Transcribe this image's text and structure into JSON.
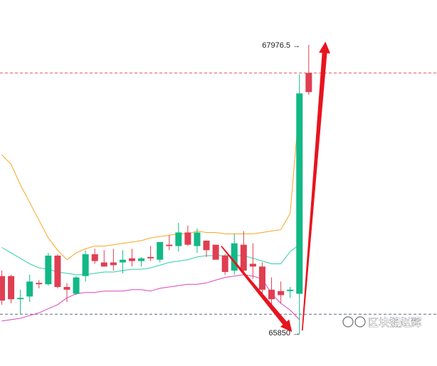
{
  "chart_data": {
    "type": "candlestick",
    "title": "",
    "xlabel": "",
    "ylabel": "",
    "annotations": {
      "high_label": "67976.5",
      "low_label": "65850",
      "watermark": "区块链赵辉"
    },
    "price_lines": [
      67770,
      66000
    ],
    "colors": {
      "up": "#12b886",
      "down": "#e03e52",
      "boll_upper": "#f5a623",
      "boll_mid": "#2ecfa6",
      "boll_lower": "#dd44bb",
      "arrow": "#e8141e",
      "price_line_red": "#e85d5d",
      "price_line_gray": "#5a6a8a"
    },
    "candles": [
      {
        "o": 66280,
        "h": 66320,
        "l": 66070,
        "c": 66100
      },
      {
        "o": 66280,
        "h": 66290,
        "l": 66080,
        "c": 66110
      },
      {
        "o": 66110,
        "h": 66180,
        "l": 66000,
        "c": 66120
      },
      {
        "o": 66130,
        "h": 66290,
        "l": 66090,
        "c": 66240
      },
      {
        "o": 66230,
        "h": 66250,
        "l": 66190,
        "c": 66220
      },
      {
        "o": 66220,
        "h": 66450,
        "l": 66210,
        "c": 66430
      },
      {
        "o": 66430,
        "h": 66440,
        "l": 66190,
        "c": 66200
      },
      {
        "o": 66200,
        "h": 66230,
        "l": 66090,
        "c": 66180
      },
      {
        "o": 66150,
        "h": 66280,
        "l": 66140,
        "c": 66270
      },
      {
        "o": 66280,
        "h": 66470,
        "l": 66240,
        "c": 66440
      },
      {
        "o": 66440,
        "h": 66480,
        "l": 66370,
        "c": 66390
      },
      {
        "o": 66380,
        "h": 66470,
        "l": 66350,
        "c": 66350
      },
      {
        "o": 66380,
        "h": 66480,
        "l": 66320,
        "c": 66360
      },
      {
        "o": 66380,
        "h": 66470,
        "l": 66300,
        "c": 66400
      },
      {
        "o": 66410,
        "h": 66480,
        "l": 66350,
        "c": 66390
      },
      {
        "o": 66390,
        "h": 66420,
        "l": 66350,
        "c": 66410
      },
      {
        "o": 66420,
        "h": 66500,
        "l": 66390,
        "c": 66410
      },
      {
        "o": 66400,
        "h": 66530,
        "l": 66380,
        "c": 66530
      },
      {
        "o": 66510,
        "h": 66580,
        "l": 66470,
        "c": 66500
      },
      {
        "o": 66500,
        "h": 66670,
        "l": 66460,
        "c": 66600
      },
      {
        "o": 66600,
        "h": 66650,
        "l": 66500,
        "c": 66510
      },
      {
        "o": 66500,
        "h": 66630,
        "l": 66450,
        "c": 66600
      },
      {
        "o": 66540,
        "h": 66540,
        "l": 66420,
        "c": 66470
      },
      {
        "o": 66510,
        "h": 66510,
        "l": 66410,
        "c": 66400
      },
      {
        "o": 66430,
        "h": 66440,
        "l": 66290,
        "c": 66310
      },
      {
        "o": 66320,
        "h": 66590,
        "l": 66290,
        "c": 66520
      },
      {
        "o": 66510,
        "h": 66610,
        "l": 66310,
        "c": 66320
      },
      {
        "o": 66370,
        "h": 66520,
        "l": 66260,
        "c": 66350
      },
      {
        "o": 66350,
        "h": 66380,
        "l": 66120,
        "c": 66180
      },
      {
        "o": 66180,
        "h": 66270,
        "l": 66030,
        "c": 66110
      },
      {
        "o": 66170,
        "h": 66240,
        "l": 66080,
        "c": 66140
      },
      {
        "o": 66170,
        "h": 66200,
        "l": 66120,
        "c": 66180
      },
      {
        "o": 66150,
        "h": 67760,
        "l": 65850,
        "c": 67620
      },
      {
        "o": 67770,
        "h": 67976.5,
        "l": 67610,
        "c": 67630
      }
    ],
    "boll_upper": [
      67170,
      67100,
      66950,
      66820,
      66690,
      66560,
      66470,
      66400,
      66450,
      66480,
      66500,
      66500,
      66510,
      66520,
      66530,
      66540,
      66560,
      66570,
      66580,
      66590,
      66590,
      66610,
      66600,
      66600,
      66590,
      66590,
      66590,
      66590,
      66600,
      66610,
      66620,
      66740,
      67540,
      null
    ],
    "boll_mid": [
      66490,
      66450,
      66410,
      66370,
      66340,
      66330,
      66310,
      66300,
      66290,
      66290,
      66300,
      66310,
      66310,
      66320,
      66330,
      66330,
      66340,
      66360,
      66380,
      66390,
      66400,
      66420,
      66430,
      66430,
      66430,
      66430,
      66430,
      66410,
      66390,
      66370,
      66370,
      66460,
      66510,
      null
    ],
    "boll_lower": [
      65950,
      65960,
      65970,
      65990,
      66010,
      66040,
      66070,
      66120,
      66150,
      66160,
      66160,
      66170,
      66170,
      66170,
      66180,
      66180,
      66170,
      66190,
      66200,
      66210,
      66220,
      66220,
      66230,
      66250,
      66270,
      66280,
      66290,
      66280,
      66260,
      66150,
      66080,
      66030,
      65960,
      null
    ],
    "arrows": [
      {
        "from": [
          23.6,
          66500
        ],
        "to": [
          31.2,
          65870
        ]
      },
      {
        "from": [
          32.3,
          65880
        ],
        "to": [
          34.8,
          68000
        ]
      }
    ]
  }
}
